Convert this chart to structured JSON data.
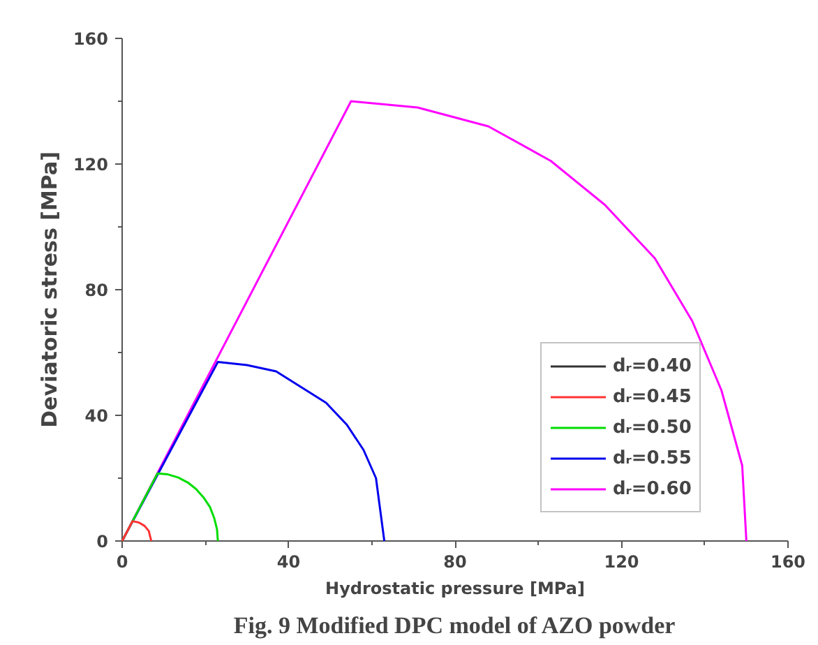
{
  "chart_data": {
    "type": "line",
    "xlabel": "Hydrostatic pressure [MPa]",
    "ylabel": "Deviatoric stress [MPa]",
    "xlim": [
      0,
      160
    ],
    "ylim": [
      0,
      160
    ],
    "xticks": [
      0,
      {
        "value": 20,
        "label": null
      },
      40,
      {
        "value": 60,
        "label": null
      },
      80,
      {
        "value": 100,
        "label": null
      },
      120,
      {
        "value": 140,
        "label": null
      },
      160
    ],
    "yticks": [
      0,
      {
        "value": 20,
        "label": null
      },
      40,
      {
        "value": 60,
        "label": null
      },
      80,
      {
        "value": 100,
        "label": null
      },
      120,
      {
        "value": 140,
        "label": null
      },
      160
    ],
    "grid": false,
    "legend": "bottom right",
    "marker": "none",
    "line_style": "solid",
    "annotations": [
      "Fig. 9 Modified DPC model of AZO powder"
    ],
    "series": [
      {
        "name": "dᵣ=0.40",
        "color": "#333333"
      },
      {
        "name": "dᵣ=0.45",
        "color": "#ff3333",
        "x": [
          0,
          2.5,
          4.0,
          5.4,
          6.4,
          7
        ],
        "values": [
          0,
          6.3,
          5.9,
          4.8,
          3.2,
          0
        ]
      },
      {
        "name": "dᵣ=0.50",
        "color": "#00dd00",
        "x": [
          0,
          8.5,
          11,
          13.5,
          15.8,
          17.8,
          19.6,
          21.1,
          22.1,
          22.8,
          23
        ],
        "values": [
          0,
          21.5,
          21.2,
          20.2,
          18.6,
          16.5,
          13.8,
          10.8,
          7.4,
          3.7,
          0
        ]
      },
      {
        "name": "dᵣ=0.55",
        "color": "#0000ee",
        "x": [
          0,
          23,
          30,
          37,
          43,
          49,
          54,
          58,
          61,
          62,
          63
        ],
        "values": [
          0,
          57,
          56,
          54,
          49,
          44,
          37,
          29,
          20,
          10,
          0
        ]
      },
      {
        "name": "dᵣ=0.60",
        "color": "#ff00ff",
        "x": [
          0,
          55,
          71,
          88,
          103,
          116,
          128,
          137,
          144,
          149,
          150
        ],
        "values": [
          0,
          140,
          138,
          132,
          121,
          107,
          90,
          70,
          48,
          24,
          0
        ]
      }
    ]
  }
}
